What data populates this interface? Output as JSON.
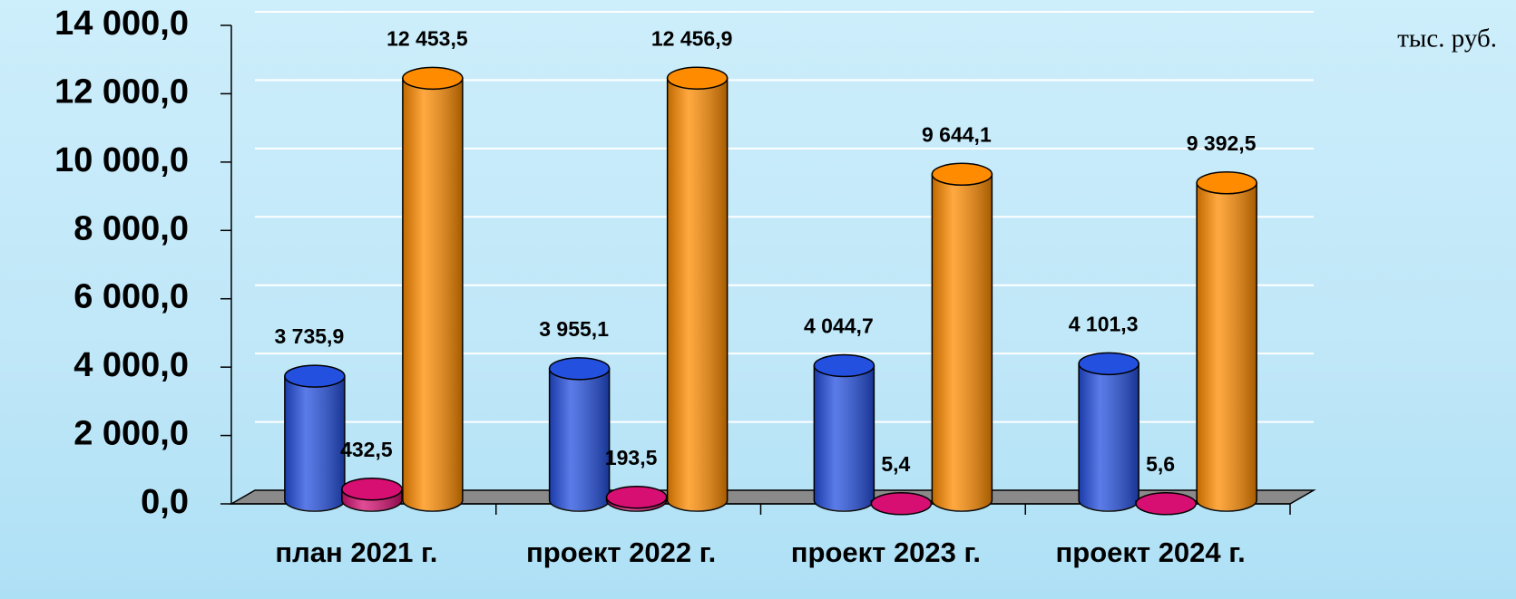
{
  "chart_data": {
    "type": "bar3d",
    "unit": "тыс. руб.",
    "categories": [
      "план 2021 г.",
      "проект 2022 г.",
      "проект 2023 г.",
      "проект 2024 г."
    ],
    "series": [
      {
        "color": "#2450e0",
        "values": [
          3735.9,
          3955.1,
          4044.7,
          4101.3
        ],
        "value_labels": [
          "3 735,9",
          "3 955,1",
          "4 044,7",
          "4 101,3"
        ]
      },
      {
        "color": "#d80f73",
        "values": [
          432.5,
          193.5,
          5.4,
          5.6
        ],
        "value_labels": [
          "432,5",
          "193,5",
          "5,4",
          "5,6"
        ]
      },
      {
        "color": "#ff8c00",
        "values": [
          12453.5,
          12456.9,
          9644.1,
          9392.5
        ],
        "value_labels": [
          "12 453,5",
          "12 456,9",
          "9 644,1",
          "9 392,5"
        ]
      }
    ],
    "ylim": [
      0,
      14000
    ],
    "yticks": [
      {
        "value": 0,
        "label": "0,0"
      },
      {
        "value": 2000,
        "label": "2 000,0"
      },
      {
        "value": 4000,
        "label": "4 000,0"
      },
      {
        "value": 6000,
        "label": "6 000,0"
      },
      {
        "value": 8000,
        "label": "8 000,0"
      },
      {
        "value": 10000,
        "label": "10 000,0"
      },
      {
        "value": 12000,
        "label": "12 000,0"
      },
      {
        "value": 14000,
        "label": "14 000,0"
      }
    ],
    "grid": true
  }
}
